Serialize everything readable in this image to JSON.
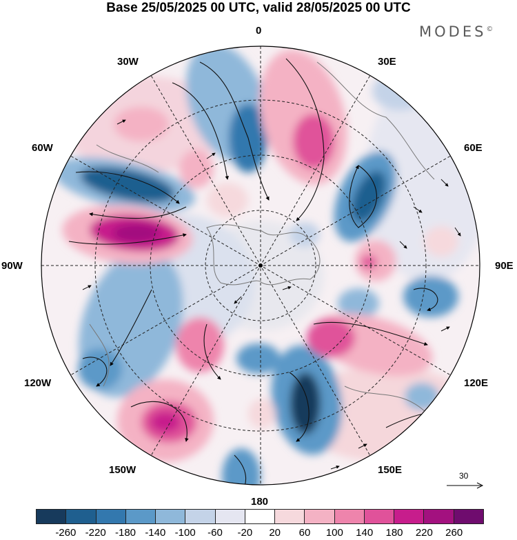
{
  "title": "Base 25/05/2025 00 UTC, valid 28/05/2025 00 UTC",
  "brand": "MODES",
  "brand_mark": "©",
  "longitude_labels": {
    "lon_0": "0",
    "lon_30e": "30E",
    "lon_60e": "60E",
    "lon_90e": "90E",
    "lon_120e": "120E",
    "lon_150e": "150E",
    "lon_180": "180",
    "lon_150w": "150W",
    "lon_120w": "120W",
    "lon_90w": "90W",
    "lon_60w": "60W",
    "lon_30w": "30W"
  },
  "reference_vector": {
    "label": "30"
  },
  "legend": {
    "ticks": [
      "-260",
      "-220",
      "-180",
      "-140",
      "-100",
      "-60",
      "-20",
      "20",
      "60",
      "100",
      "140",
      "180",
      "220",
      "260"
    ],
    "colors": [
      "#173a5c",
      "#1f5f8f",
      "#3378ae",
      "#5b99c8",
      "#8fb8da",
      "#c4d3e8",
      "#e5e6f1",
      "#ffffff",
      "#f6d9dd",
      "#f4b2c4",
      "#ee84ac",
      "#e0529a",
      "#c71d8c",
      "#a3117f",
      "#6f0c6e"
    ]
  },
  "map": {
    "projection": "north-polar-stereographic",
    "color_field": "anomaly shading (blue negative, pink positive)",
    "overlay": "wind vectors and streamlines"
  }
}
